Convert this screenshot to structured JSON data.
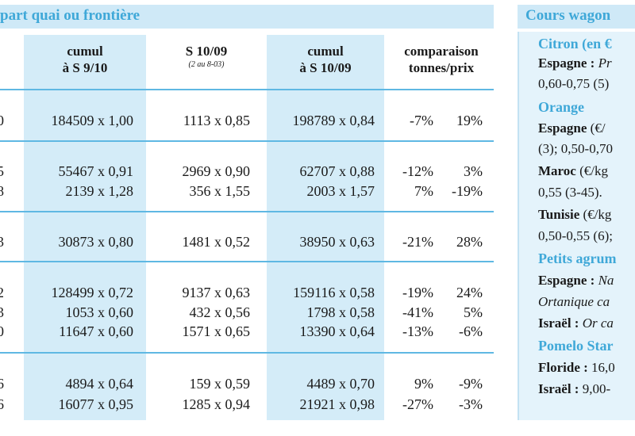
{
  "left_table": {
    "header_title": "part quai ou frontière",
    "columns": [
      {
        "line1": "cumul",
        "line2": "à S 9/10",
        "sub": ""
      },
      {
        "line1": "S 10/09",
        "line2": "",
        "sub": "(2 au 8-03)"
      },
      {
        "line1": "cumul",
        "line2": "à S 10/09",
        "sub": ""
      },
      {
        "line1": "comparaison",
        "line2": "tonnes/prix",
        "sub": ""
      }
    ],
    "rows": [
      {
        "edge": "0",
        "c1": "184509 x 1,00",
        "c2": "1113 x 0,85",
        "c3": "198789 x 0,84",
        "cmp_t": "-7%",
        "cmp_p": "19%"
      },
      {
        "edge": "5",
        "c1": "55467 x 0,91",
        "c2": "2969 x 0,90",
        "c3": "62707 x 0,88",
        "cmp_t": "-12%",
        "cmp_p": "3%"
      },
      {
        "edge": "8",
        "c1": "2139 x 1,28",
        "c2": "356 x 1,55",
        "c3": "2003 x 1,57",
        "cmp_t": "7%",
        "cmp_p": "-19%"
      },
      {
        "edge": "3",
        "c1": "30873 x 0,80",
        "c2": "1481 x 0,52",
        "c3": "38950 x 0,63",
        "cmp_t": "-21%",
        "cmp_p": "28%"
      },
      {
        "edge": "2",
        "c1": "128499 x 0,72",
        "c2": "9137 x 0,63",
        "c3": "159116 x 0,58",
        "cmp_t": "-19%",
        "cmp_p": "24%"
      },
      {
        "edge": "3",
        "c1": "1053 x 0,60",
        "c2": "432 x 0,56",
        "c3": "1798 x 0,58",
        "cmp_t": "-41%",
        "cmp_p": "5%"
      },
      {
        "edge": "0",
        "c1": "11647 x 0,60",
        "c2": "1571 x 0,65",
        "c3": "13390 x 0,64",
        "cmp_t": "-13%",
        "cmp_p": "-6%"
      },
      {
        "edge": "6",
        "c1": "4894 x 0,64",
        "c2": "159 x 0,59",
        "c3": "4489 x 0,70",
        "cmp_t": "9%",
        "cmp_p": "-9%"
      },
      {
        "edge": "6",
        "c1": "16077 x 0,95",
        "c2": "1285 x 0,94",
        "c3": "21921 x 0,98",
        "cmp_t": "-27%",
        "cmp_p": "-3%"
      }
    ]
  },
  "right_panel": {
    "header_title": "Cours wagon",
    "lines": [
      {
        "kind": "title",
        "text": "Citron (en €"
      },
      {
        "kind": "mixed",
        "bold": "Espagne : ",
        "italic": "Pr",
        "plain": ""
      },
      {
        "kind": "plain",
        "text": "0,60-0,75 (5)"
      },
      {
        "kind": "title",
        "text": "Orange"
      },
      {
        "kind": "mixed",
        "bold": "Espagne",
        "italic": "",
        "plain": " (€/"
      },
      {
        "kind": "plain",
        "text": "(3); 0,50-0,70"
      },
      {
        "kind": "mixed",
        "bold": "Maroc",
        "italic": "",
        "plain": " (€/kg"
      },
      {
        "kind": "plain",
        "text": "0,55 (3-45)."
      },
      {
        "kind": "mixed",
        "bold": "Tunisie",
        "italic": "",
        "plain": " (€/kg"
      },
      {
        "kind": "plain",
        "text": "0,50-0,55 (6);"
      },
      {
        "kind": "title",
        "text": "Petits agrum"
      },
      {
        "kind": "mixed",
        "bold": "Espagne : ",
        "italic": "Na",
        "plain": ""
      },
      {
        "kind": "italic",
        "text": "Ortanique ca"
      },
      {
        "kind": "mixed",
        "bold": "Israël : ",
        "italic": "Or ca",
        "plain": ""
      },
      {
        "kind": "title",
        "text": "Pomelo Star"
      },
      {
        "kind": "mixed",
        "bold": "Floride : ",
        "italic": "",
        "plain": "16,0"
      },
      {
        "kind": "mixed",
        "bold": "Israël : ",
        "italic": "",
        "plain": "9,00-"
      }
    ]
  }
}
